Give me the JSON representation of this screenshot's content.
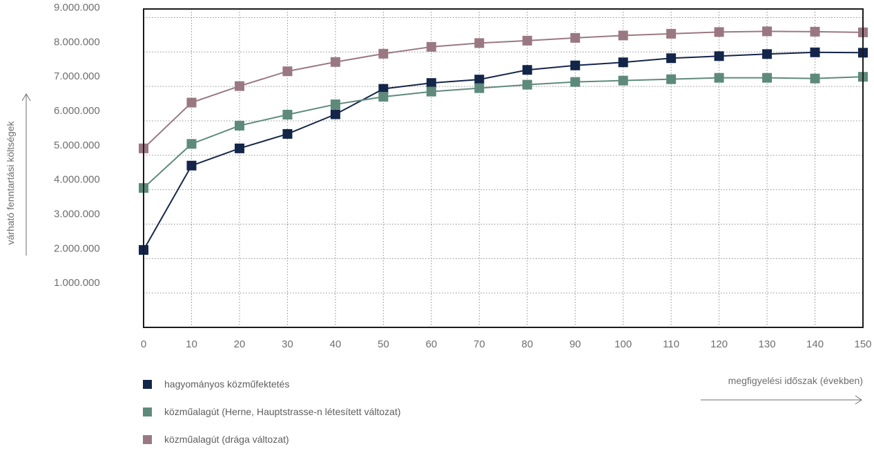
{
  "chart_data": {
    "type": "line",
    "title": "",
    "xlabel": "megfigyelési időszak (években)",
    "ylabel": "várható fenntartási költségek",
    "x": [
      0,
      10,
      20,
      30,
      40,
      50,
      60,
      70,
      80,
      90,
      100,
      110,
      120,
      130,
      140,
      150
    ],
    "x_tick_labels": [
      "0",
      "10",
      "20",
      "30",
      "40",
      "50",
      "60",
      "70",
      "80",
      "90",
      "100",
      "110",
      "120",
      "130",
      "140",
      "150"
    ],
    "y_tick_labels": [
      "1.000.000",
      "2.000.000",
      "3.000.000",
      "4.000.000",
      "5.000.000",
      "6.000.000",
      "7.000.000",
      "8.000.000",
      "9.000.000"
    ],
    "y_ticks": [
      1000000,
      2000000,
      3000000,
      4000000,
      5000000,
      6000000,
      7000000,
      8000000,
      9000000
    ],
    "xlim": [
      0,
      150
    ],
    "ylim": [
      0,
      9250000
    ],
    "grid": true,
    "legend_position": "bottom-left",
    "series": [
      {
        "name": "hagyományos közműfektetés",
        "color": "#14254a",
        "values": [
          2250000,
          4700000,
          5200000,
          5620000,
          6190000,
          6930000,
          7100000,
          7200000,
          7480000,
          7610000,
          7700000,
          7820000,
          7880000,
          7940000,
          7990000,
          7980000
        ]
      },
      {
        "name": "közműalagút (Herne, Hauptstrasse-n létesített változat)",
        "color": "#5e8a7c",
        "values": [
          4050000,
          5330000,
          5860000,
          6180000,
          6480000,
          6700000,
          6850000,
          6950000,
          7050000,
          7130000,
          7170000,
          7210000,
          7250000,
          7250000,
          7230000,
          7280000
        ]
      },
      {
        "name": "közműalagút (drága változat)",
        "color": "#9a7882",
        "values": [
          5200000,
          6530000,
          7010000,
          7440000,
          7710000,
          7950000,
          8150000,
          8260000,
          8330000,
          8410000,
          8480000,
          8530000,
          8580000,
          8600000,
          8590000,
          8570000
        ]
      }
    ]
  }
}
